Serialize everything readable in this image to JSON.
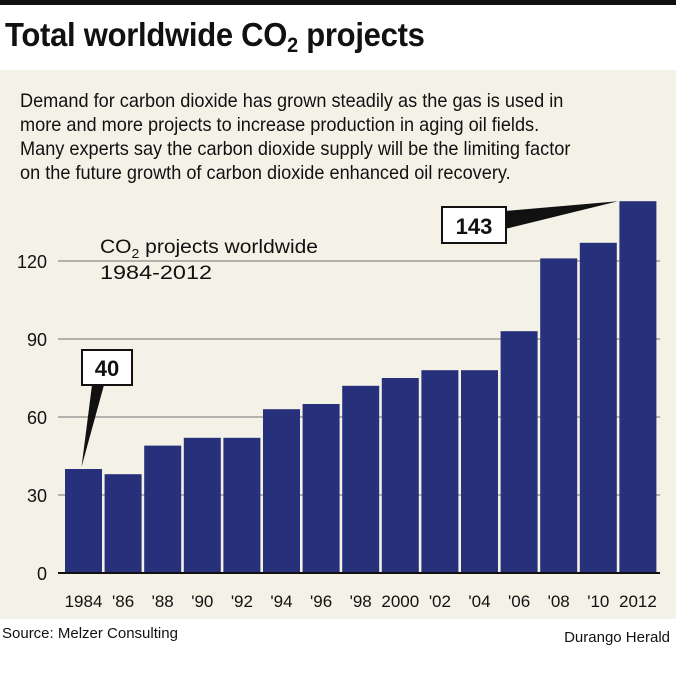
{
  "headline": {
    "prefix": "Total worldwide CO",
    "sub": "2",
    "suffix": " projects"
  },
  "intro_lines": [
    "Demand for carbon dioxide has grown steadily as the gas is used in",
    "more and more projects to increase production in aging oil fields.",
    "Many experts say the carbon dioxide supply will be the limiting factor",
    "on the future growth of carbon dioxide enhanced oil recovery."
  ],
  "source": "Source: Melzer Consulting",
  "credit": "Durango Herald",
  "colors": {
    "bar": "#27307a",
    "panel": "#f4f2e6",
    "grid": "#8a8a8a"
  },
  "chart_data": {
    "type": "bar",
    "title_line1_prefix": "CO",
    "title_line1_sub": "2",
    "title_line1_suffix": " projects worldwide",
    "title_line2": "1984-2012",
    "categories": [
      "1984",
      "'86",
      "'88",
      "'90",
      "'92",
      "'94",
      "'96",
      "'98",
      "2000",
      "'02",
      "'04",
      "'06",
      "'08",
      "'10",
      "2012"
    ],
    "values": [
      40,
      38,
      49,
      52,
      52,
      63,
      65,
      72,
      75,
      78,
      78,
      93,
      121,
      127,
      143
    ],
    "ylim": [
      0,
      143
    ],
    "yticks": [
      0,
      30,
      60,
      90,
      120
    ],
    "grid": true,
    "callouts": [
      {
        "label": "40",
        "category_index": 0
      },
      {
        "label": "143",
        "category_index": 14
      }
    ]
  }
}
